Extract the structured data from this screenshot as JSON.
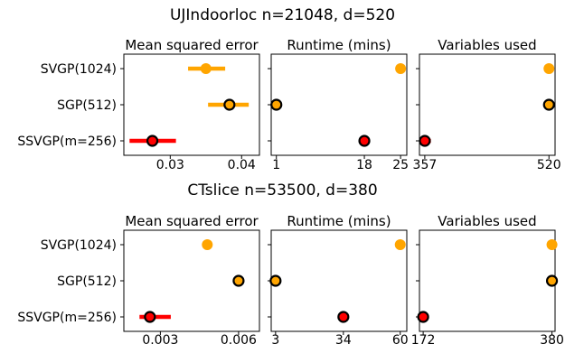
{
  "chart_data": [
    {
      "type": "scatter",
      "title": "UJIndoorloc n=21048, d=520",
      "methods": [
        "SVGP(1024)",
        "SGP(512)",
        "SSVGP(m=256)"
      ],
      "method_colors": [
        "#ffa500",
        "#ffa500",
        "#ff0000"
      ],
      "highlight_edge": [
        false,
        true,
        true
      ],
      "panels": [
        {
          "title": "Mean squared error",
          "xlim": [
            0.0235,
            0.0425
          ],
          "ticks": [
            0.03,
            0.04
          ],
          "tick_labels": [
            "0.03",
            "0.04"
          ],
          "points": [
            {
              "method": "SVGP(1024)",
              "x": 0.035,
              "err": [
                0.0325,
                0.0377
              ]
            },
            {
              "method": "SGP(512)",
              "x": 0.0383,
              "err": [
                0.0353,
                0.041
              ]
            },
            {
              "method": "SSVGP(m=256)",
              "x": 0.0275,
              "err": [
                0.0243,
                0.0308
              ]
            }
          ]
        },
        {
          "title": "Runtime (mins)",
          "xlim": [
            0,
            26.2
          ],
          "ticks": [
            1,
            18,
            25
          ],
          "tick_labels": [
            "1",
            "18",
            "25"
          ],
          "points": [
            {
              "method": "SVGP(1024)",
              "x": 25
            },
            {
              "method": "SGP(512)",
              "x": 1
            },
            {
              "method": "SSVGP(m=256)",
              "x": 18
            }
          ]
        },
        {
          "title": "Variables used",
          "xlim": [
            350,
            528
          ],
          "ticks": [
            357,
            520
          ],
          "tick_labels": [
            "357",
            "520"
          ],
          "points": [
            {
              "method": "SVGP(1024)",
              "x": 520
            },
            {
              "method": "SGP(512)",
              "x": 520
            },
            {
              "method": "SSVGP(m=256)",
              "x": 357,
              "err": [
                350,
                365
              ]
            }
          ]
        }
      ]
    },
    {
      "type": "scatter",
      "title": "CTslice n=53500, d=380",
      "methods": [
        "SVGP(1024)",
        "SGP(512)",
        "SSVGP(m=256)"
      ],
      "method_colors": [
        "#ffa500",
        "#ffa500",
        "#ff0000"
      ],
      "highlight_edge": [
        false,
        true,
        true
      ],
      "panels": [
        {
          "title": "Mean squared error",
          "xlim": [
            0.0016,
            0.0068
          ],
          "ticks": [
            0.003,
            0.006
          ],
          "tick_labels": [
            "0.003",
            "0.006"
          ],
          "points": [
            {
              "method": "SVGP(1024)",
              "x": 0.0048
            },
            {
              "method": "SGP(512)",
              "x": 0.006,
              "err": [
                0.0058,
                0.00615
              ]
            },
            {
              "method": "SSVGP(m=256)",
              "x": 0.0026,
              "err": [
                0.0022,
                0.0034
              ]
            }
          ]
        },
        {
          "title": "Runtime (mins)",
          "xlim": [
            1,
            63
          ],
          "ticks": [
            3,
            34,
            60
          ],
          "tick_labels": [
            "3",
            "34",
            "60"
          ],
          "points": [
            {
              "method": "SVGP(1024)",
              "x": 60
            },
            {
              "method": "SGP(512)",
              "x": 3
            },
            {
              "method": "SSVGP(m=256)",
              "x": 34
            }
          ]
        },
        {
          "title": "Variables used",
          "xlim": [
            166,
            385
          ],
          "ticks": [
            172,
            380
          ],
          "tick_labels": [
            "172",
            "380"
          ],
          "points": [
            {
              "method": "SVGP(1024)",
              "x": 380
            },
            {
              "method": "SGP(512)",
              "x": 380
            },
            {
              "method": "SSVGP(m=256)",
              "x": 172,
              "err": [
                167,
                180
              ]
            }
          ]
        }
      ]
    }
  ]
}
